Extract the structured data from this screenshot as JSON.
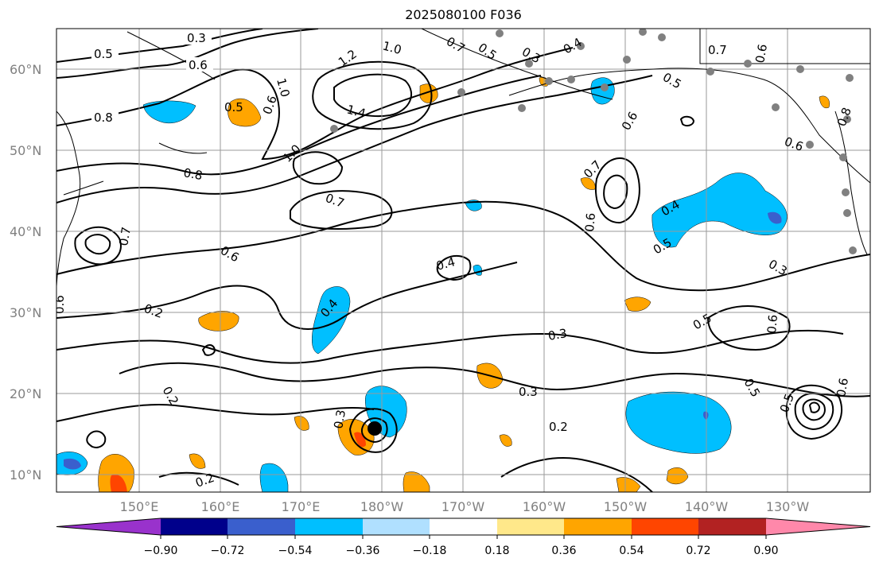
{
  "title": "2025080100 F036",
  "map": {
    "lat_labels": [
      "60°N",
      "50°N",
      "40°N",
      "30°N",
      "20°N",
      "10°N"
    ],
    "lon_labels": [
      "150°E",
      "160°E",
      "170°E",
      "180°W",
      "170°W",
      "160°W",
      "150°W",
      "140°W",
      "130°W"
    ],
    "contour_labels": [
      "0.3",
      "0.5",
      "0.6",
      "0.8",
      "0.5",
      "0.6",
      "1.0",
      "1.2",
      "1.0",
      "1.4",
      "0.7",
      "0.5",
      "0.3",
      "0.4",
      "0.7",
      "0.6",
      "0.5",
      "0.6",
      "0.8",
      "0.7",
      "1.0",
      "0.7",
      "0.8",
      "0.6",
      "0.7",
      "0.6",
      "0.4",
      "0.5",
      "0.6",
      "0.4",
      "0.4",
      "0.3",
      "0.5",
      "0.6",
      "0.2",
      "0.3",
      "0.3",
      "0.2",
      "0.3",
      "0.5",
      "0.2",
      "0.2",
      "0.5",
      "0.6",
      "0.6"
    ],
    "colors": {
      "land_outline": "#000000",
      "grid": "#9a9a9a",
      "station_dot": "#808080",
      "marker": "#000000"
    }
  },
  "colorbar": {
    "tick_labels": [
      "−0.90",
      "−0.72",
      "−0.54",
      "−0.36",
      "−0.18",
      "0.18",
      "0.36",
      "0.54",
      "0.72",
      "0.90"
    ],
    "segment_colors": [
      "#9932cc",
      "#00008b",
      "#3a5fcd",
      "#00bfff",
      "#b0e0ff",
      "#ffffff",
      "#ffe88a",
      "#ffa500",
      "#ff4500",
      "#b22222",
      "#ff88aa"
    ]
  }
}
